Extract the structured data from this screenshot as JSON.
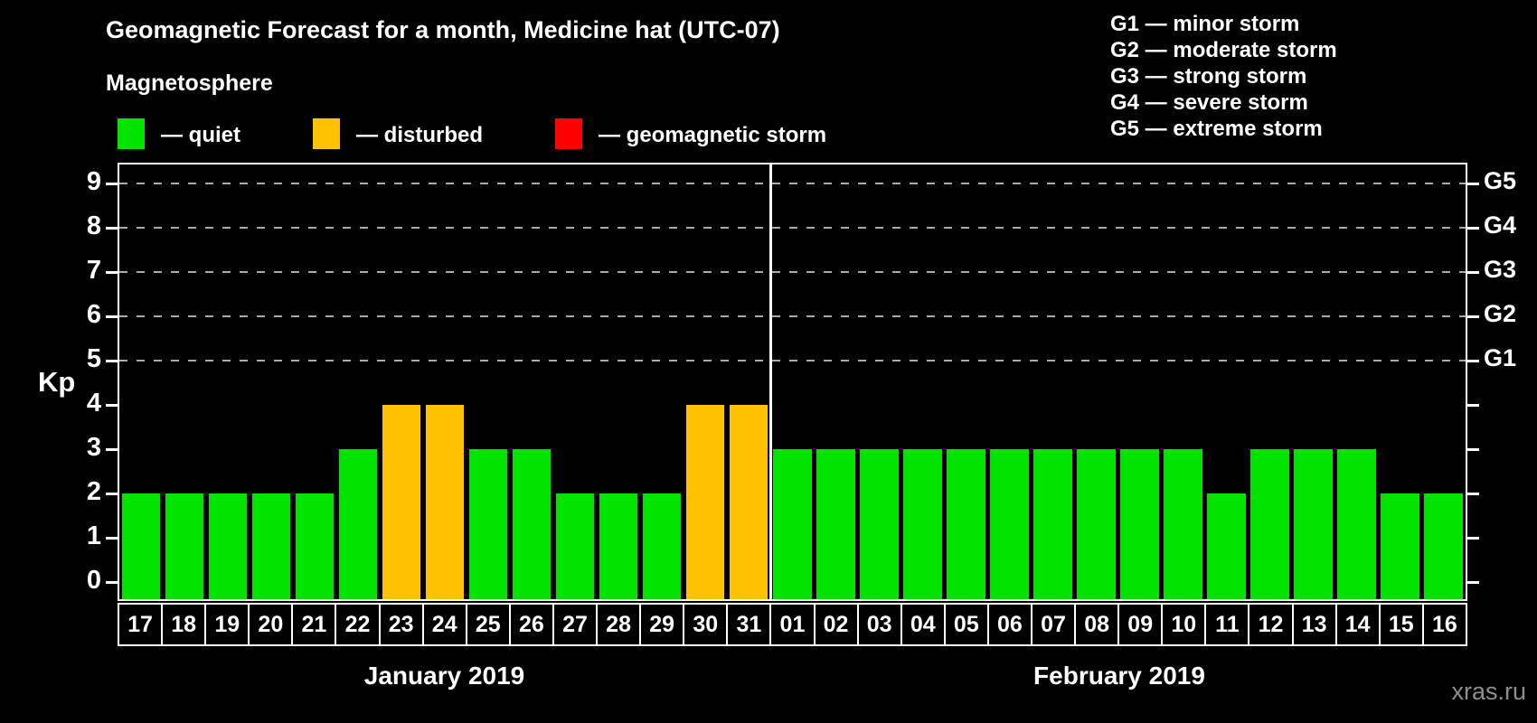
{
  "title": "Geomagnetic Forecast for a month, Medicine hat (UTC-07)",
  "subtitle": "Magnetosphere",
  "legend": {
    "items": [
      {
        "name": "quiet",
        "label": "— quiet",
        "color": "#00e400"
      },
      {
        "name": "disturbed",
        "label": "— disturbed",
        "color": "#ffc200"
      },
      {
        "name": "geomagnetic-storm",
        "label": "— geomagnetic storm",
        "color": "#ff0000"
      }
    ]
  },
  "storm_legend": {
    "lines": [
      "G1 — minor storm",
      "G2 — moderate storm",
      "G3 — strong storm",
      "G4 — severe storm",
      "G5 — extreme storm"
    ]
  },
  "watermark": "xras.ru",
  "chart_data": {
    "type": "bar",
    "title": "Geomagnetic Forecast for a month, Medicine hat (UTC-07)",
    "ylabel": "Kp",
    "xlabel": "",
    "ylim": [
      0,
      9
    ],
    "yticks": [
      0,
      1,
      2,
      3,
      4,
      5,
      6,
      7,
      8,
      9
    ],
    "gridlines_at": [
      5,
      6,
      7,
      8,
      9
    ],
    "grid": "dashed horizontal lines at storm levels only",
    "legend_position": "top-left",
    "right_axis_labels": [
      {
        "label": "G1",
        "value": 5
      },
      {
        "label": "G2",
        "value": 6
      },
      {
        "label": "G3",
        "value": 7
      },
      {
        "label": "G4",
        "value": 8
      },
      {
        "label": "G5",
        "value": 9
      }
    ],
    "state_colors": {
      "quiet": "#00e400",
      "disturbed": "#ffc200",
      "storm": "#ff0000"
    },
    "months": [
      {
        "label": "January 2019",
        "days": [
          "17",
          "18",
          "19",
          "20",
          "21",
          "22",
          "23",
          "24",
          "25",
          "26",
          "27",
          "28",
          "29",
          "30",
          "31"
        ],
        "values": [
          2,
          2,
          2,
          2,
          2,
          3,
          4,
          4,
          3,
          3,
          2,
          2,
          2,
          4,
          4
        ],
        "states": [
          "quiet",
          "quiet",
          "quiet",
          "quiet",
          "quiet",
          "quiet",
          "disturbed",
          "disturbed",
          "quiet",
          "quiet",
          "quiet",
          "quiet",
          "quiet",
          "disturbed",
          "disturbed"
        ]
      },
      {
        "label": "February 2019",
        "days": [
          "01",
          "02",
          "03",
          "04",
          "05",
          "06",
          "07",
          "08",
          "09",
          "10",
          "11",
          "12",
          "13",
          "14",
          "15",
          "16"
        ],
        "values": [
          3,
          3,
          3,
          3,
          3,
          3,
          3,
          3,
          3,
          3,
          2,
          3,
          3,
          3,
          2,
          2
        ],
        "states": [
          "quiet",
          "quiet",
          "quiet",
          "quiet",
          "quiet",
          "quiet",
          "quiet",
          "quiet",
          "quiet",
          "quiet",
          "quiet",
          "quiet",
          "quiet",
          "quiet",
          "quiet",
          "quiet"
        ]
      }
    ]
  }
}
